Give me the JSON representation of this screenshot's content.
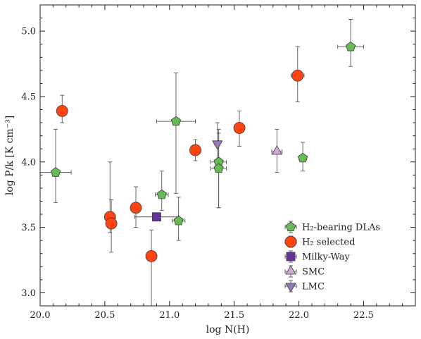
{
  "chart_data": {
    "type": "scatter",
    "xlabel": "log N(H)",
    "ylabel": "log P/k [K cm⁻³]",
    "xlim": [
      20.0,
      22.9
    ],
    "ylim": [
      2.9,
      5.2
    ],
    "xticks": [
      "20.0",
      "20.5",
      "21.0",
      "21.5",
      "22.0",
      "22.5"
    ],
    "yticks": [
      "3.0",
      "3.5",
      "4.0",
      "4.5",
      "5.0"
    ],
    "grid": false,
    "legend_position": "lower-right",
    "series": [
      {
        "name": "H₂-bearing DLAs",
        "marker": "pentagon",
        "color": "#66bb55",
        "points": [
          {
            "x": 20.12,
            "y": 3.92,
            "xerr": 0.12,
            "yerr_up": 0.33,
            "yerr_down": 0.23
          },
          {
            "x": 20.94,
            "y": 3.75,
            "xerr": 0.05,
            "yerr_up": 0.18,
            "yerr_down": 0.12
          },
          {
            "x": 21.05,
            "y": 4.31,
            "xerr": 0.15,
            "yerr_up": 0.37,
            "yerr_down": 0.55
          },
          {
            "x": 21.07,
            "y": 3.55,
            "xerr": 0.05,
            "yerr_up": 0.18,
            "yerr_down": 0.15
          },
          {
            "x": 21.38,
            "y": 4.0,
            "xerr": 0.06,
            "yerr_up": 0.25,
            "yerr_down": 0.35
          },
          {
            "x": 21.38,
            "y": 3.95,
            "xerr": 0.06,
            "yerr_up": 0.27,
            "yerr_down": 0.3
          },
          {
            "x": 22.03,
            "y": 4.03,
            "xerr": 0.03,
            "yerr_up": 0.12,
            "yerr_down": 0.1
          },
          {
            "x": 22.4,
            "y": 4.88,
            "xerr": 0.1,
            "yerr_up": 0.21,
            "yerr_down": 0.15
          }
        ]
      },
      {
        "name": "H₂ selected",
        "marker": "circle",
        "color": "#ff4411",
        "points": [
          {
            "x": 20.17,
            "y": 4.39,
            "xerr": 0.03,
            "yerr_up": 0.12,
            "yerr_down": 0.09
          },
          {
            "x": 20.54,
            "y": 3.58,
            "xerr": 0.02,
            "yerr_up": 0.42,
            "yerr_down": 0.12
          },
          {
            "x": 20.55,
            "y": 3.53,
            "xerr": 0.02,
            "yerr_up": 0.18,
            "yerr_down": 0.22
          },
          {
            "x": 20.74,
            "y": 3.65,
            "xerr": 0.02,
            "yerr_up": 0.16,
            "yerr_down": 0.15
          },
          {
            "x": 20.86,
            "y": 3.28,
            "xerr": 0.02,
            "yerr_up": 0.2,
            "yerr_down": 0.4
          },
          {
            "x": 21.2,
            "y": 4.09,
            "xerr": 0.02,
            "yerr_up": 0.08,
            "yerr_down": 0.08
          },
          {
            "x": 21.54,
            "y": 4.26,
            "xerr": 0.02,
            "yerr_up": 0.13,
            "yerr_down": 0.14
          },
          {
            "x": 21.99,
            "y": 4.66,
            "xerr": 0.05,
            "yerr_up": 0.22,
            "yerr_down": 0.2
          }
        ]
      },
      {
        "name": "Milky-Way",
        "marker": "square",
        "color": "#663399",
        "points": [
          {
            "x": 20.9,
            "y": 3.58,
            "xerr": 0.17,
            "yerr_up": 0.0,
            "yerr_down": 0.0
          }
        ]
      },
      {
        "name": "SMC",
        "marker": "triangle-up",
        "color": "#ccaad6",
        "points": [
          {
            "x": 21.83,
            "y": 4.08,
            "xerr": 0.04,
            "yerr_up": 0.17,
            "yerr_down": 0.16
          }
        ]
      },
      {
        "name": "LMC",
        "marker": "triangle-down",
        "color": "#9977bb",
        "points": [
          {
            "x": 21.37,
            "y": 4.14,
            "xerr": 0.02,
            "yerr_up": 0.16,
            "yerr_down": 0.2
          }
        ]
      }
    ]
  }
}
